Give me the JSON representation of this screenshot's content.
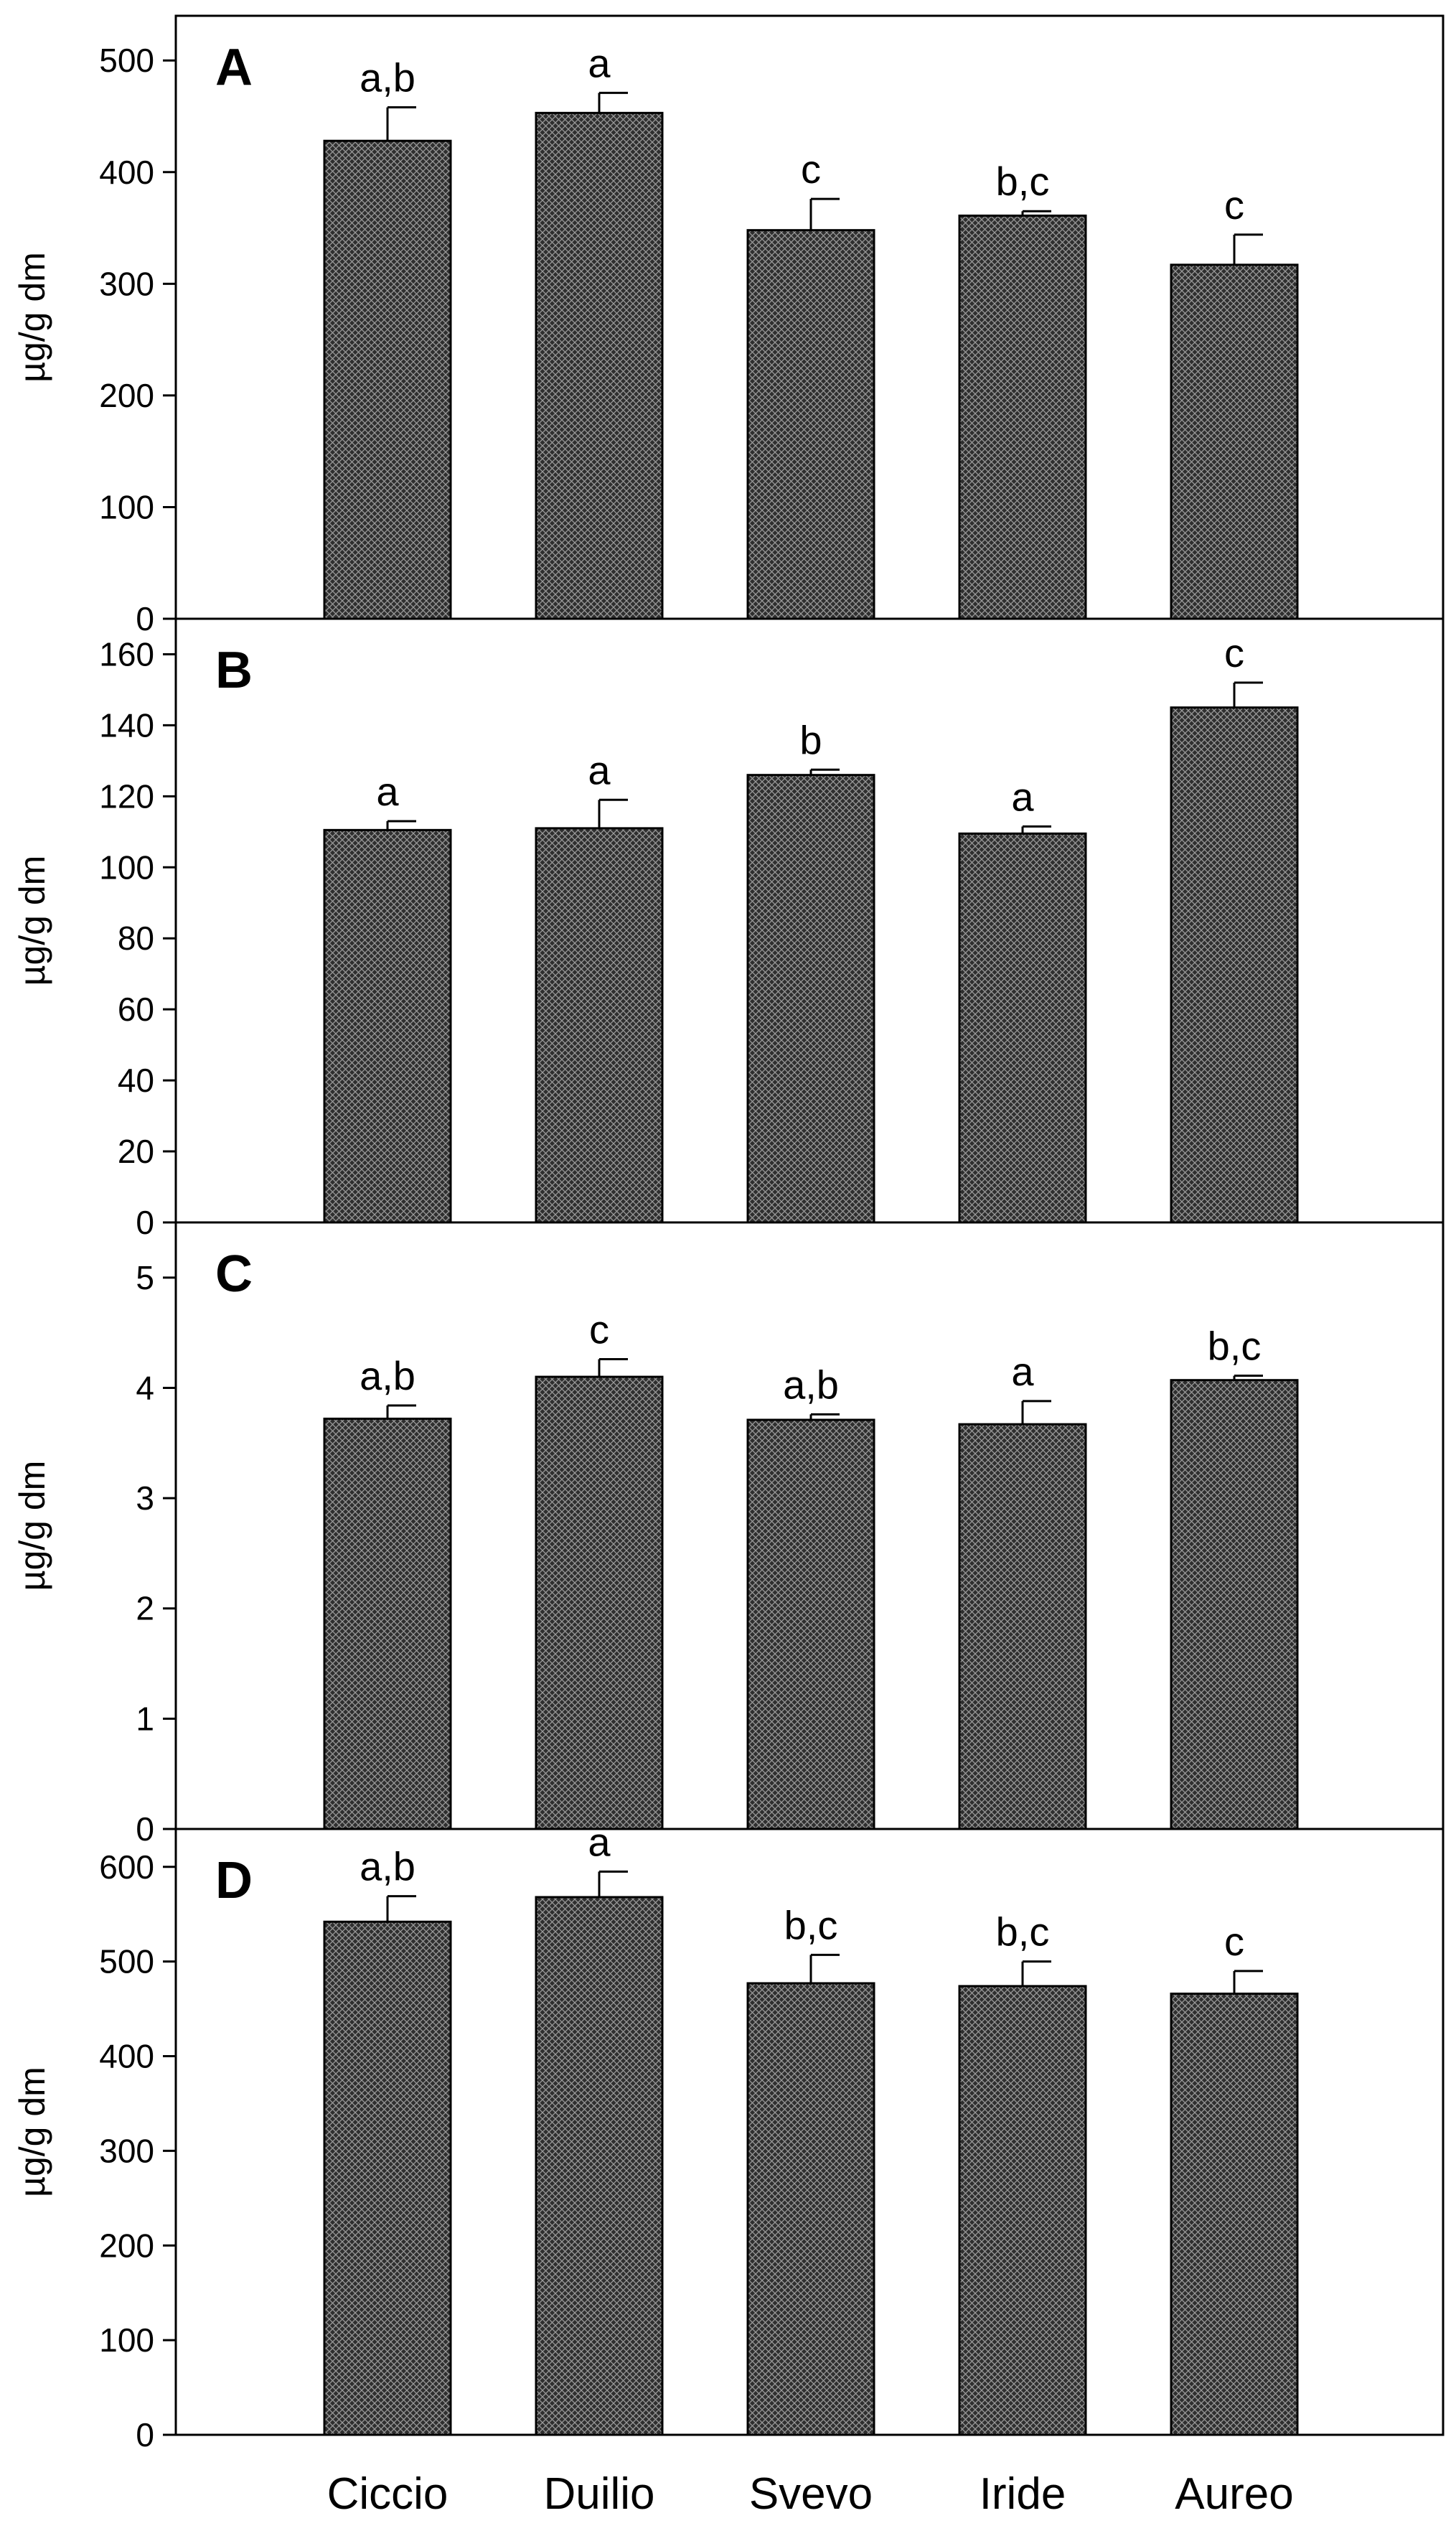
{
  "chart_data": [
    {
      "type": "bar",
      "panel": "A",
      "categories": [
        "Ciccio",
        "Duilio",
        "Svevo",
        "Iride",
        "Aureo"
      ],
      "values": [
        428,
        453,
        348,
        361,
        317
      ],
      "errors": [
        30,
        18,
        28,
        4,
        27
      ],
      "significance": [
        "a,b",
        "a",
        "c",
        "b,c",
        "c"
      ],
      "ylabel": "µg/g dm",
      "ylim": [
        0,
        540
      ],
      "yticks": [
        0,
        100,
        200,
        300,
        400,
        500
      ]
    },
    {
      "type": "bar",
      "panel": "B",
      "categories": [
        "Ciccio",
        "Duilio",
        "Svevo",
        "Iride",
        "Aureo"
      ],
      "values": [
        110.5,
        111,
        126,
        109.5,
        145
      ],
      "errors": [
        2.5,
        8,
        1.5,
        2,
        7
      ],
      "significance": [
        "a",
        "a",
        "b",
        "a",
        "c"
      ],
      "ylabel": "µg/g dm",
      "ylim": [
        0,
        170
      ],
      "yticks": [
        0,
        20,
        40,
        60,
        80,
        100,
        120,
        140,
        160
      ]
    },
    {
      "type": "bar",
      "panel": "C",
      "categories": [
        "Ciccio",
        "Duilio",
        "Svevo",
        "Iride",
        "Aureo"
      ],
      "values": [
        3.72,
        4.1,
        3.71,
        3.67,
        4.07
      ],
      "errors": [
        0.12,
        0.16,
        0.05,
        0.21,
        0.04
      ],
      "significance": [
        "a,b",
        "c",
        "a,b",
        "a",
        "b,c"
      ],
      "ylabel": "µg/g dm",
      "ylim": [
        0,
        5.5
      ],
      "yticks": [
        0,
        1,
        2,
        3,
        4,
        5
      ]
    },
    {
      "type": "bar",
      "panel": "D",
      "categories": [
        "Ciccio",
        "Duilio",
        "Svevo",
        "Iride",
        "Aureo"
      ],
      "values": [
        542,
        568,
        477,
        474,
        466
      ],
      "errors": [
        27,
        27,
        30,
        26,
        24
      ],
      "significance": [
        "a,b",
        "a",
        "b,c",
        "b,c",
        "c"
      ],
      "ylabel": "µg/g dm",
      "ylim": [
        0,
        640
      ],
      "yticks": [
        0,
        100,
        200,
        300,
        400,
        500,
        600
      ]
    }
  ]
}
